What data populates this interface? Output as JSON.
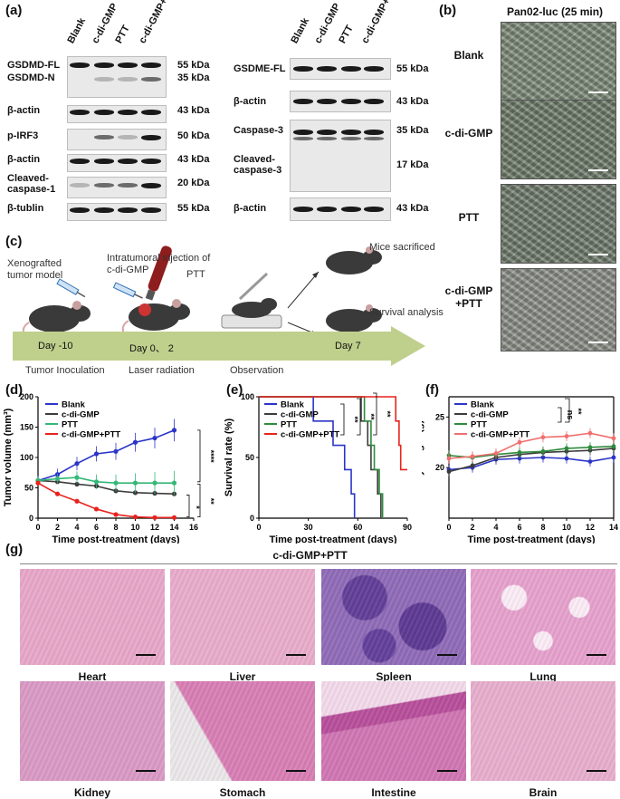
{
  "panels": {
    "a": "(a)",
    "b": "(b)",
    "c": "(c)",
    "d": "(d)",
    "e": "(e)",
    "f": "(f)",
    "g": "(g)"
  },
  "panel_a": {
    "lanes": [
      "Blank",
      "c-di-GMP",
      "PTT",
      "c-di-GMP+PTT"
    ],
    "left_rows": [
      {
        "label": "GSDMD-FL",
        "kda": "55 kDa"
      },
      {
        "label": "GSDMD-N",
        "kda": "35 kDa"
      },
      {
        "label": "β-actin",
        "kda": "43 kDa"
      },
      {
        "label": "p-IRF3",
        "kda": "50 kDa"
      },
      {
        "label": "β-actin",
        "kda": "43 kDa"
      },
      {
        "label": "Cleaved-caspase-1",
        "kda": "20 kDa"
      },
      {
        "label": "β-tublin",
        "kda": "55 kDa"
      }
    ],
    "right_rows": [
      {
        "label": "GSDME-FL",
        "kda": "55 kDa"
      },
      {
        "label": "β-actin",
        "kda": "43 kDa"
      },
      {
        "label": "Caspase-3",
        "kda": "35 kDa"
      },
      {
        "label": "Cleaved-caspase-3",
        "kda": "17 kDa"
      },
      {
        "label": "β-actin",
        "kda": "43 kDa"
      }
    ]
  },
  "panel_b": {
    "title": "Pan02-luc (25 min)",
    "rows": [
      "Blank",
      "c-di-GMP",
      "PTT",
      "c-di-GMP\n+PTT"
    ]
  },
  "panel_c": {
    "labels": {
      "xenograft": "Xenografted tumor model",
      "injection": "Intratumoral injection of c-di-GMP",
      "ptt": "PTT",
      "sacrificed": "Mice sacrificed",
      "survival": "Survival analysis"
    },
    "timeline": [
      "Day -10",
      "Day 0、 2",
      "Day 7"
    ],
    "phases": [
      "Tumor Inoculation",
      "Laser radiation",
      "Observation"
    ]
  },
  "colors": {
    "blank": "#2b35c8",
    "cdigmp": "#3c3c3c",
    "ptt": "#2e8b3c",
    "combo": "#e8221c",
    "ptt_d": "#33b878",
    "combo_f": "#f06f6f",
    "timeline": "#bfd08c"
  },
  "chart_data": [
    {
      "type": "line",
      "xlabel": "Time post-treatment (days)",
      "ylabel": "Tumor volume (mm³)",
      "xlim": [
        0,
        16
      ],
      "ylim": [
        0,
        200
      ],
      "xticks": [
        0,
        2,
        4,
        6,
        8,
        10,
        12,
        14,
        16
      ],
      "yticks": [
        0,
        50,
        100,
        150,
        200
      ],
      "x": [
        0,
        2,
        4,
        6,
        8,
        10,
        12,
        14
      ],
      "series": [
        {
          "name": "Blank",
          "values": [
            62,
            72,
            90,
            106,
            110,
            125,
            132,
            145
          ]
        },
        {
          "name": "c-di-GMP",
          "values": [
            62,
            60,
            56,
            53,
            45,
            42,
            41,
            40
          ]
        },
        {
          "name": "PTT",
          "values": [
            62,
            65,
            67,
            60,
            58,
            58,
            58,
            58
          ]
        },
        {
          "name": "c-di-GMP+PTT",
          "values": [
            58,
            40,
            28,
            15,
            6,
            2,
            1,
            1
          ]
        }
      ],
      "sig": [
        "****",
        "**",
        "*"
      ]
    },
    {
      "type": "line",
      "xlabel": "Time post-treatment (days)",
      "ylabel": "Survival rate (%)",
      "xlim": [
        0,
        90
      ],
      "ylim": [
        0,
        100
      ],
      "xticks": [
        0,
        30,
        60,
        90
      ],
      "yticks": [
        0,
        50,
        100
      ],
      "series": [
        {
          "name": "Blank",
          "points": [
            [
              0,
              100
            ],
            [
              33,
              100
            ],
            [
              33,
              80
            ],
            [
              45,
              80
            ],
            [
              45,
              60
            ],
            [
              52,
              60
            ],
            [
              52,
              40
            ],
            [
              56,
              40
            ],
            [
              56,
              20
            ],
            [
              58,
              20
            ],
            [
              58,
              0
            ]
          ]
        },
        {
          "name": "c-di-GMP",
          "points": [
            [
              0,
              100
            ],
            [
              62,
              100
            ],
            [
              62,
              80
            ],
            [
              66,
              80
            ],
            [
              66,
              60
            ],
            [
              68,
              60
            ],
            [
              68,
              40
            ],
            [
              72,
              40
            ],
            [
              72,
              20
            ],
            [
              74,
              20
            ],
            [
              74,
              0
            ]
          ]
        },
        {
          "name": "PTT",
          "points": [
            [
              0,
              100
            ],
            [
              64,
              100
            ],
            [
              64,
              80
            ],
            [
              68,
              80
            ],
            [
              68,
              60
            ],
            [
              70,
              60
            ],
            [
              70,
              40
            ],
            [
              73,
              40
            ],
            [
              73,
              20
            ],
            [
              75,
              20
            ],
            [
              75,
              0
            ]
          ]
        },
        {
          "name": "c-di-GMP+PTT",
          "points": [
            [
              0,
              100
            ],
            [
              83,
              100
            ],
            [
              83,
              80
            ],
            [
              85,
              80
            ],
            [
              85,
              60
            ],
            [
              86,
              60
            ],
            [
              86,
              40
            ],
            [
              90,
              40
            ]
          ]
        }
      ],
      "sig": [
        "**",
        "**",
        "**"
      ]
    },
    {
      "type": "line",
      "xlabel": "Time post-treatment (days)",
      "ylabel": "Body weight (g)",
      "xlim": [
        0,
        14
      ],
      "ylim": [
        15,
        27
      ],
      "xticks": [
        0,
        2,
        4,
        6,
        8,
        10,
        12,
        14
      ],
      "yticks": [
        20,
        25
      ],
      "x": [
        0,
        2,
        4,
        6,
        8,
        10,
        12,
        14
      ],
      "series": [
        {
          "name": "Blank",
          "values": [
            19.8,
            20.0,
            20.8,
            20.9,
            21.0,
            20.9,
            20.6,
            21.0
          ]
        },
        {
          "name": "c-di-GMP",
          "values": [
            19.6,
            20.2,
            21.0,
            21.3,
            21.5,
            21.6,
            21.7,
            21.9
          ]
        },
        {
          "name": "PTT",
          "values": [
            21.2,
            21.0,
            21.3,
            21.5,
            21.6,
            21.9,
            22.0,
            22.1
          ]
        },
        {
          "name": "c-di-GMP+PTT",
          "values": [
            20.9,
            21.1,
            21.4,
            22.5,
            23.0,
            23.1,
            23.4,
            22.9
          ]
        }
      ],
      "sig": [
        "ns",
        "**"
      ]
    }
  ],
  "panel_g": {
    "title": "c-di-GMP+PTT",
    "organs": [
      "Heart",
      "Liver",
      "Spleen",
      "Lung",
      "Kidney",
      "Stomach",
      "Intestine",
      "Brain"
    ]
  }
}
